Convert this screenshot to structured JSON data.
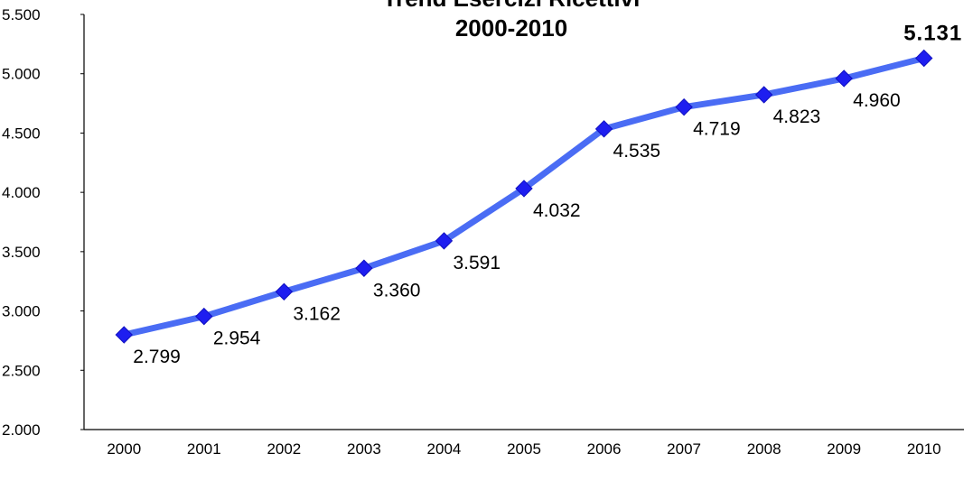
{
  "chart_data": {
    "type": "line",
    "title_lines": [
      "Trend Esercizi Ricettivi",
      "2000-2010"
    ],
    "categories": [
      "2000",
      "2001",
      "2002",
      "2003",
      "2004",
      "2005",
      "2006",
      "2007",
      "2008",
      "2009",
      "2010"
    ],
    "series": [
      {
        "values": [
          2799,
          2954,
          3162,
          3360,
          3591,
          4032,
          4535,
          4719,
          4823,
          4960,
          5131
        ],
        "data_labels": [
          "2.799",
          "2.954",
          "3.162",
          "3.360",
          "3.591",
          "4.032",
          "4.535",
          "4.719",
          "4.823",
          "4.960",
          "5.131"
        ],
        "color": "#4a6cf4",
        "marker": "diamond",
        "marker_color": "#1e1ef0"
      }
    ],
    "ylim": [
      2000,
      5500
    ],
    "yticks": [
      2000,
      2500,
      3000,
      3500,
      4000,
      4500,
      5000,
      5500
    ],
    "ytick_labels": [
      "2.000",
      "2.500",
      "3.000",
      "3.500",
      "4.000",
      "4.500",
      "5.000",
      "5.500"
    ],
    "xlabel": "",
    "ylabel": "",
    "grid": false,
    "legend": "none"
  }
}
